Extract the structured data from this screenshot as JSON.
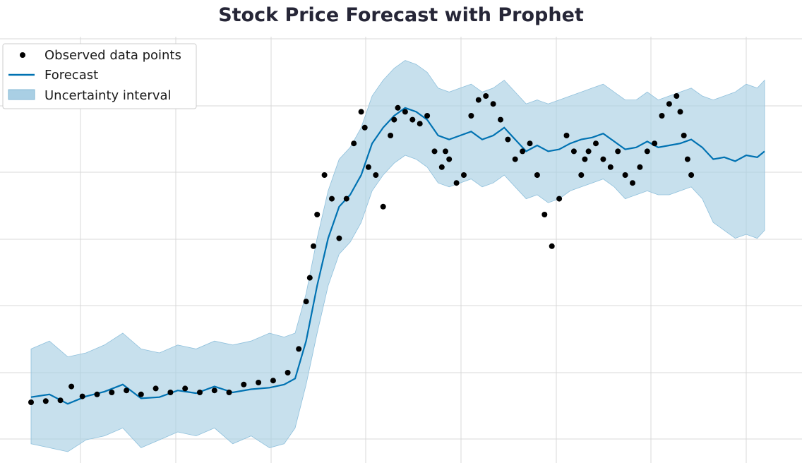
{
  "chart_data": {
    "type": "line",
    "title": "Stock Price Forecast with Prophet",
    "xlabel": "",
    "ylabel": "",
    "xlim": [
      0,
      1.0
    ],
    "ylim": [
      0,
      1.0
    ],
    "grid": true,
    "legend_position": "top-left",
    "legend": {
      "observed": "Observed data points",
      "forecast": "Forecast",
      "interval": "Uncertainty interval"
    },
    "colors": {
      "observed": "#000000",
      "forecast": "#0072B2",
      "interval": "#a9cfe4",
      "title": "#262637",
      "grid": "#d9d9d9"
    },
    "series": [
      {
        "name": "Forecast",
        "x": [
          0.0,
          0.025,
          0.05,
          0.075,
          0.1,
          0.125,
          0.15,
          0.175,
          0.2,
          0.225,
          0.25,
          0.275,
          0.3,
          0.325,
          0.345,
          0.36,
          0.375,
          0.39,
          0.405,
          0.42,
          0.435,
          0.45,
          0.465,
          0.48,
          0.495,
          0.51,
          0.525,
          0.54,
          0.555,
          0.57,
          0.585,
          0.6,
          0.615,
          0.63,
          0.645,
          0.66,
          0.675,
          0.69,
          0.705,
          0.72,
          0.735,
          0.75,
          0.765,
          0.78,
          0.795,
          0.81,
          0.825,
          0.84,
          0.855,
          0.87,
          0.885,
          0.9,
          0.915,
          0.93,
          0.945,
          0.96,
          0.975,
          0.99,
          1.0
        ],
        "y": [
          0.138,
          0.145,
          0.121,
          0.14,
          0.152,
          0.17,
          0.135,
          0.138,
          0.155,
          0.148,
          0.165,
          0.15,
          0.158,
          0.162,
          0.17,
          0.185,
          0.28,
          0.42,
          0.54,
          0.62,
          0.65,
          0.7,
          0.78,
          0.82,
          0.85,
          0.87,
          0.86,
          0.84,
          0.8,
          0.79,
          0.8,
          0.81,
          0.79,
          0.8,
          0.82,
          0.79,
          0.76,
          0.775,
          0.76,
          0.765,
          0.78,
          0.79,
          0.795,
          0.805,
          0.785,
          0.765,
          0.77,
          0.785,
          0.77,
          0.775,
          0.78,
          0.79,
          0.77,
          0.74,
          0.745,
          0.735,
          0.75,
          0.745,
          0.76
        ]
      },
      {
        "name": "Observed data points",
        "x": [
          0.0,
          0.02,
          0.04,
          0.055,
          0.07,
          0.09,
          0.11,
          0.13,
          0.15,
          0.17,
          0.19,
          0.21,
          0.23,
          0.25,
          0.27,
          0.29,
          0.31,
          0.33,
          0.35,
          0.365,
          0.375,
          0.38,
          0.385,
          0.39,
          0.4,
          0.41,
          0.42,
          0.43,
          0.44,
          0.45,
          0.455,
          0.46,
          0.47,
          0.48,
          0.49,
          0.495,
          0.5,
          0.51,
          0.52,
          0.53,
          0.54,
          0.55,
          0.56,
          0.565,
          0.57,
          0.58,
          0.59,
          0.6,
          0.61,
          0.62,
          0.63,
          0.64,
          0.65,
          0.66,
          0.67,
          0.68,
          0.69,
          0.7,
          0.71,
          0.72,
          0.73,
          0.74,
          0.75,
          0.755,
          0.76,
          0.77,
          0.78,
          0.79,
          0.8,
          0.81,
          0.82,
          0.83,
          0.84,
          0.85,
          0.86,
          0.87,
          0.88,
          0.885,
          0.89,
          0.895,
          0.9
        ],
        "y": [
          0.125,
          0.128,
          0.13,
          0.165,
          0.14,
          0.145,
          0.15,
          0.155,
          0.145,
          0.16,
          0.15,
          0.16,
          0.15,
          0.155,
          0.15,
          0.17,
          0.175,
          0.18,
          0.2,
          0.26,
          0.38,
          0.44,
          0.52,
          0.6,
          0.7,
          0.64,
          0.54,
          0.64,
          0.78,
          0.86,
          0.82,
          0.72,
          0.7,
          0.62,
          0.8,
          0.84,
          0.87,
          0.86,
          0.84,
          0.83,
          0.85,
          0.76,
          0.72,
          0.76,
          0.74,
          0.68,
          0.7,
          0.85,
          0.89,
          0.9,
          0.88,
          0.84,
          0.79,
          0.74,
          0.76,
          0.78,
          0.7,
          0.6,
          0.52,
          0.64,
          0.8,
          0.76,
          0.7,
          0.74,
          0.76,
          0.78,
          0.74,
          0.72,
          0.76,
          0.7,
          0.68,
          0.72,
          0.76,
          0.78,
          0.85,
          0.88,
          0.9,
          0.86,
          0.8,
          0.74,
          0.7
        ]
      }
    ],
    "uncertainty": {
      "x": [
        0.0,
        0.025,
        0.05,
        0.075,
        0.1,
        0.125,
        0.15,
        0.175,
        0.2,
        0.225,
        0.25,
        0.275,
        0.3,
        0.325,
        0.345,
        0.36,
        0.375,
        0.39,
        0.405,
        0.42,
        0.435,
        0.45,
        0.465,
        0.48,
        0.495,
        0.51,
        0.525,
        0.54,
        0.555,
        0.57,
        0.585,
        0.6,
        0.615,
        0.63,
        0.645,
        0.66,
        0.675,
        0.69,
        0.705,
        0.72,
        0.735,
        0.75,
        0.765,
        0.78,
        0.795,
        0.81,
        0.825,
        0.84,
        0.855,
        0.87,
        0.885,
        0.9,
        0.915,
        0.93,
        0.945,
        0.96,
        0.975,
        0.99,
        1.0
      ],
      "lower": [
        0.02,
        0.01,
        0.0,
        0.03,
        0.04,
        0.06,
        0.01,
        0.03,
        0.05,
        0.04,
        0.06,
        0.02,
        0.04,
        0.01,
        0.02,
        0.06,
        0.17,
        0.3,
        0.42,
        0.5,
        0.53,
        0.58,
        0.66,
        0.7,
        0.73,
        0.75,
        0.74,
        0.72,
        0.68,
        0.67,
        0.68,
        0.69,
        0.67,
        0.68,
        0.7,
        0.67,
        0.64,
        0.65,
        0.63,
        0.64,
        0.66,
        0.67,
        0.68,
        0.69,
        0.67,
        0.64,
        0.65,
        0.66,
        0.65,
        0.65,
        0.66,
        0.67,
        0.64,
        0.58,
        0.56,
        0.54,
        0.55,
        0.54,
        0.56
      ],
      "upper": [
        0.26,
        0.28,
        0.24,
        0.25,
        0.27,
        0.3,
        0.26,
        0.25,
        0.27,
        0.26,
        0.28,
        0.27,
        0.28,
        0.3,
        0.29,
        0.3,
        0.4,
        0.54,
        0.66,
        0.74,
        0.77,
        0.82,
        0.9,
        0.94,
        0.97,
        0.99,
        0.98,
        0.96,
        0.92,
        0.91,
        0.92,
        0.93,
        0.91,
        0.92,
        0.94,
        0.91,
        0.88,
        0.89,
        0.88,
        0.89,
        0.9,
        0.91,
        0.92,
        0.93,
        0.91,
        0.89,
        0.89,
        0.91,
        0.89,
        0.9,
        0.91,
        0.92,
        0.9,
        0.89,
        0.9,
        0.91,
        0.93,
        0.92,
        0.94
      ]
    }
  }
}
